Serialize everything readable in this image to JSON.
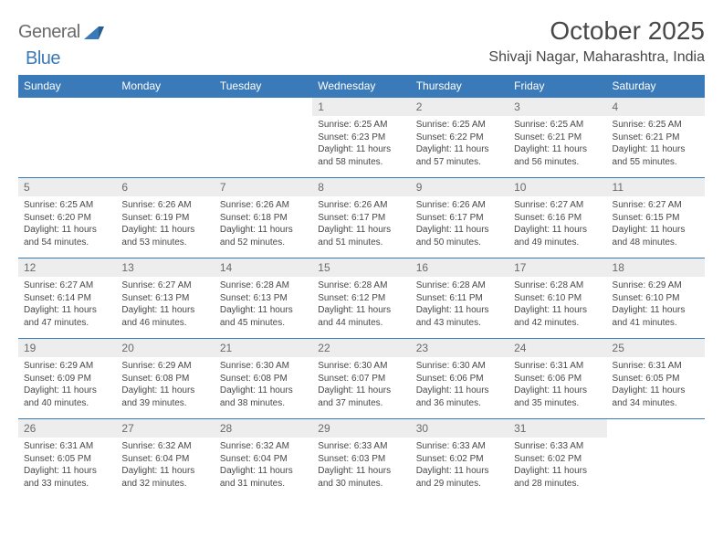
{
  "brand": {
    "text1": "General",
    "text2": "Blue"
  },
  "title": "October 2025",
  "location": "Shivaji Nagar, Maharashtra, India",
  "colors": {
    "header_bg": "#3a7ab8",
    "header_text": "#ffffff",
    "daynum_bg": "#ededed",
    "text": "#474747",
    "rule": "#3a7ab8",
    "page_bg": "#ffffff"
  },
  "weekdays": [
    "Sunday",
    "Monday",
    "Tuesday",
    "Wednesday",
    "Thursday",
    "Friday",
    "Saturday"
  ],
  "first_weekday_index": 3,
  "days": [
    {
      "n": 1,
      "sr": "6:25 AM",
      "ss": "6:23 PM",
      "dh": 11,
      "dm": 58
    },
    {
      "n": 2,
      "sr": "6:25 AM",
      "ss": "6:22 PM",
      "dh": 11,
      "dm": 57
    },
    {
      "n": 3,
      "sr": "6:25 AM",
      "ss": "6:21 PM",
      "dh": 11,
      "dm": 56
    },
    {
      "n": 4,
      "sr": "6:25 AM",
      "ss": "6:21 PM",
      "dh": 11,
      "dm": 55
    },
    {
      "n": 5,
      "sr": "6:25 AM",
      "ss": "6:20 PM",
      "dh": 11,
      "dm": 54
    },
    {
      "n": 6,
      "sr": "6:26 AM",
      "ss": "6:19 PM",
      "dh": 11,
      "dm": 53
    },
    {
      "n": 7,
      "sr": "6:26 AM",
      "ss": "6:18 PM",
      "dh": 11,
      "dm": 52
    },
    {
      "n": 8,
      "sr": "6:26 AM",
      "ss": "6:17 PM",
      "dh": 11,
      "dm": 51
    },
    {
      "n": 9,
      "sr": "6:26 AM",
      "ss": "6:17 PM",
      "dh": 11,
      "dm": 50
    },
    {
      "n": 10,
      "sr": "6:27 AM",
      "ss": "6:16 PM",
      "dh": 11,
      "dm": 49
    },
    {
      "n": 11,
      "sr": "6:27 AM",
      "ss": "6:15 PM",
      "dh": 11,
      "dm": 48
    },
    {
      "n": 12,
      "sr": "6:27 AM",
      "ss": "6:14 PM",
      "dh": 11,
      "dm": 47
    },
    {
      "n": 13,
      "sr": "6:27 AM",
      "ss": "6:13 PM",
      "dh": 11,
      "dm": 46
    },
    {
      "n": 14,
      "sr": "6:28 AM",
      "ss": "6:13 PM",
      "dh": 11,
      "dm": 45
    },
    {
      "n": 15,
      "sr": "6:28 AM",
      "ss": "6:12 PM",
      "dh": 11,
      "dm": 44
    },
    {
      "n": 16,
      "sr": "6:28 AM",
      "ss": "6:11 PM",
      "dh": 11,
      "dm": 43
    },
    {
      "n": 17,
      "sr": "6:28 AM",
      "ss": "6:10 PM",
      "dh": 11,
      "dm": 42
    },
    {
      "n": 18,
      "sr": "6:29 AM",
      "ss": "6:10 PM",
      "dh": 11,
      "dm": 41
    },
    {
      "n": 19,
      "sr": "6:29 AM",
      "ss": "6:09 PM",
      "dh": 11,
      "dm": 40
    },
    {
      "n": 20,
      "sr": "6:29 AM",
      "ss": "6:08 PM",
      "dh": 11,
      "dm": 39
    },
    {
      "n": 21,
      "sr": "6:30 AM",
      "ss": "6:08 PM",
      "dh": 11,
      "dm": 38
    },
    {
      "n": 22,
      "sr": "6:30 AM",
      "ss": "6:07 PM",
      "dh": 11,
      "dm": 37
    },
    {
      "n": 23,
      "sr": "6:30 AM",
      "ss": "6:06 PM",
      "dh": 11,
      "dm": 36
    },
    {
      "n": 24,
      "sr": "6:31 AM",
      "ss": "6:06 PM",
      "dh": 11,
      "dm": 35
    },
    {
      "n": 25,
      "sr": "6:31 AM",
      "ss": "6:05 PM",
      "dh": 11,
      "dm": 34
    },
    {
      "n": 26,
      "sr": "6:31 AM",
      "ss": "6:05 PM",
      "dh": 11,
      "dm": 33
    },
    {
      "n": 27,
      "sr": "6:32 AM",
      "ss": "6:04 PM",
      "dh": 11,
      "dm": 32
    },
    {
      "n": 28,
      "sr": "6:32 AM",
      "ss": "6:04 PM",
      "dh": 11,
      "dm": 31
    },
    {
      "n": 29,
      "sr": "6:33 AM",
      "ss": "6:03 PM",
      "dh": 11,
      "dm": 30
    },
    {
      "n": 30,
      "sr": "6:33 AM",
      "ss": "6:02 PM",
      "dh": 11,
      "dm": 29
    },
    {
      "n": 31,
      "sr": "6:33 AM",
      "ss": "6:02 PM",
      "dh": 11,
      "dm": 28
    }
  ],
  "labels": {
    "sunrise": "Sunrise:",
    "sunset": "Sunset:",
    "daylight": "Daylight:",
    "hours_word": "hours",
    "and_word": "and",
    "minutes_word": "minutes."
  }
}
